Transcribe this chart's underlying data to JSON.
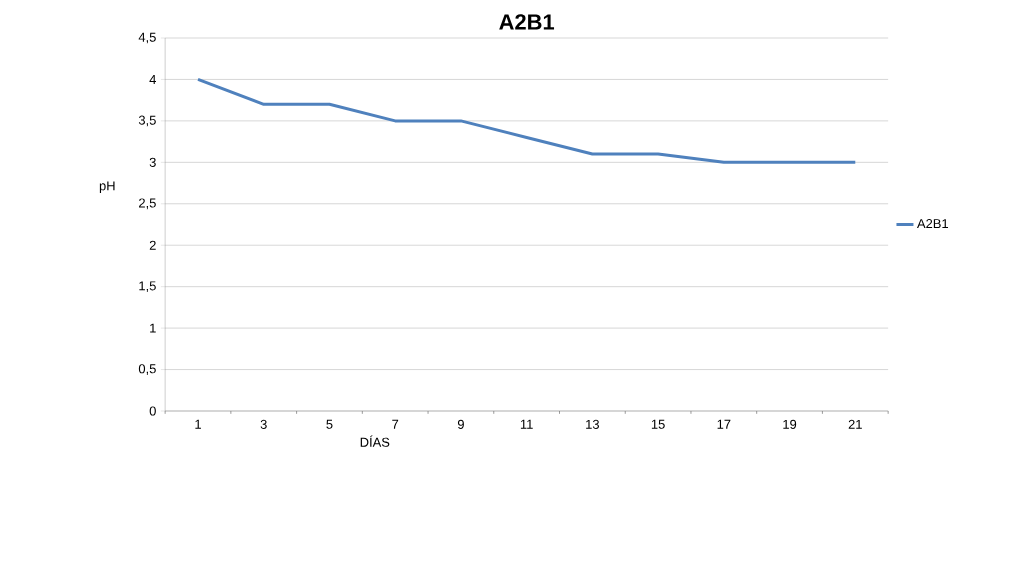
{
  "chart_data": {
    "type": "line",
    "title": "A2B1",
    "xlabel": "DÍAS",
    "ylabel": "pH",
    "categories": [
      "1",
      "3",
      "5",
      "7",
      "9",
      "11",
      "13",
      "15",
      "17",
      "19",
      "21"
    ],
    "series": [
      {
        "name": "A2B1",
        "color": "#4f81bd",
        "values": [
          4,
          3.7,
          3.7,
          3.5,
          3.5,
          3.3,
          3.1,
          3.1,
          3.0,
          3.0,
          3.0
        ]
      }
    ],
    "ylim": [
      0,
      4.5
    ],
    "yticks": [
      0,
      {
        "value": 0.5,
        "label": "0,5"
      },
      1,
      {
        "value": 1.5,
        "label": "1,5"
      },
      2,
      {
        "value": 2.5,
        "label": "2,5"
      },
      3,
      {
        "value": 3.5,
        "label": "3,5"
      },
      4,
      {
        "value": 4.5,
        "label": "4,5"
      }
    ],
    "grid": "y",
    "legend": "right"
  }
}
